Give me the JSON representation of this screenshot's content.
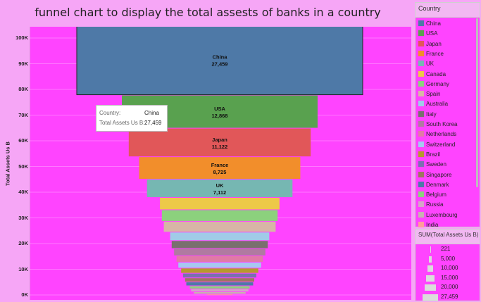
{
  "title": "funnel chart to display the total assests of banks in a country",
  "chart_data": {
    "type": "bar",
    "subtype": "funnel",
    "ylabel": "Total Assets Us B",
    "ylim": [
      0,
      105000
    ],
    "yticks": [
      0,
      10000,
      20000,
      30000,
      40000,
      50000,
      60000,
      70000,
      80000,
      90000,
      100000
    ],
    "ytick_labels": [
      "0K",
      "10K",
      "20K",
      "30K",
      "40K",
      "50K",
      "60K",
      "70K",
      "80K",
      "90K",
      "100K"
    ],
    "grid": true,
    "legend_position": "right",
    "categories": [
      "China",
      "USA",
      "Japan",
      "France",
      "UK",
      "Canada",
      "Germany",
      "Spain",
      "Australia",
      "Italy",
      "South Korea",
      "Netherlands",
      "Switzerland",
      "Brazil",
      "Sweden",
      "Singapore",
      "Denmark",
      "Belgium",
      "Russia",
      "Luxembourg",
      "India"
    ],
    "values": [
      27459,
      12868,
      11122,
      8725,
      7112,
      4800,
      4500,
      4200,
      3300,
      3100,
      2800,
      2500,
      2300,
      2000,
      1800,
      1600,
      1500,
      1200,
      1100,
      900,
      221
    ],
    "data_labels": [
      {
        "category": "China",
        "value": "27,459"
      },
      {
        "category": "USA",
        "value": "12,868"
      },
      {
        "category": "Japan",
        "value": "11,122"
      },
      {
        "category": "France",
        "value": "8,725"
      },
      {
        "category": "UK",
        "value": "7,112"
      }
    ],
    "colors": [
      "#4e79a7",
      "#59a14f",
      "#e15759",
      "#f28e2b",
      "#76b7b2",
      "#edc948",
      "#8cd17d",
      "#d7b5a6",
      "#a0cbe8",
      "#79706e",
      "#b07aa1",
      "#e07aa6",
      "#a6c8f0",
      "#b6992d",
      "#7b6fb0",
      "#9d7660",
      "#4e79a7",
      "#8cd17d",
      "#d4a6c8",
      "#c9b1b1",
      "#ff9d9a"
    ]
  },
  "legend": {
    "title": "Country",
    "items": [
      "China",
      "USA",
      "Japan",
      "France",
      "UK",
      "Canada",
      "Germany",
      "Spain",
      "Australia",
      "Italy",
      "South Korea",
      "Netherlands",
      "Switzerland",
      "Brazil",
      "Sweden",
      "Singapore",
      "Denmark",
      "Belgium",
      "Russia",
      "Luxembourg",
      "India"
    ]
  },
  "size_legend": {
    "title": "SUM(Total Assets Us B)",
    "items": [
      {
        "label": "221",
        "value": 221
      },
      {
        "label": "5,000",
        "value": 5000
      },
      {
        "label": "10,000",
        "value": 10000
      },
      {
        "label": "15,000",
        "value": 15000
      },
      {
        "label": "20,000",
        "value": 20000
      },
      {
        "label": "27,459",
        "value": 27459
      }
    ]
  },
  "tooltip": {
    "country_label": "Country:",
    "country_value": "China",
    "assets_label": "Total Assets Us B:",
    "assets_value": "27,459"
  }
}
